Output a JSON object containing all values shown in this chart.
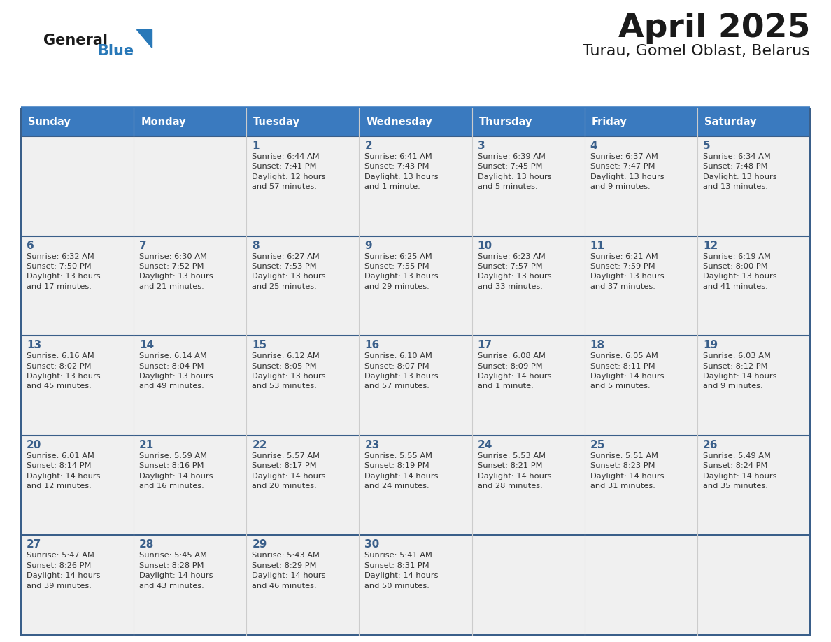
{
  "title": "April 2025",
  "subtitle": "Turau, Gomel Oblast, Belarus",
  "days_of_week": [
    "Sunday",
    "Monday",
    "Tuesday",
    "Wednesday",
    "Thursday",
    "Friday",
    "Saturday"
  ],
  "header_bg": "#3a7abf",
  "header_text_color": "#ffffff",
  "cell_bg": "#f0f0f0",
  "cell_bg_empty": "#f8f8f8",
  "border_color": "#3a5f8a",
  "day_number_color": "#3a5f8a",
  "cell_text_color": "#333333",
  "logo_text_color": "#1a1a1a",
  "logo_blue_color": "#2878b8",
  "title_color": "#1a1a1a",
  "weeks": [
    [
      {
        "day": null,
        "text": ""
      },
      {
        "day": null,
        "text": ""
      },
      {
        "day": 1,
        "text": "Sunrise: 6:44 AM\nSunset: 7:41 PM\nDaylight: 12 hours\nand 57 minutes."
      },
      {
        "day": 2,
        "text": "Sunrise: 6:41 AM\nSunset: 7:43 PM\nDaylight: 13 hours\nand 1 minute."
      },
      {
        "day": 3,
        "text": "Sunrise: 6:39 AM\nSunset: 7:45 PM\nDaylight: 13 hours\nand 5 minutes."
      },
      {
        "day": 4,
        "text": "Sunrise: 6:37 AM\nSunset: 7:47 PM\nDaylight: 13 hours\nand 9 minutes."
      },
      {
        "day": 5,
        "text": "Sunrise: 6:34 AM\nSunset: 7:48 PM\nDaylight: 13 hours\nand 13 minutes."
      }
    ],
    [
      {
        "day": 6,
        "text": "Sunrise: 6:32 AM\nSunset: 7:50 PM\nDaylight: 13 hours\nand 17 minutes."
      },
      {
        "day": 7,
        "text": "Sunrise: 6:30 AM\nSunset: 7:52 PM\nDaylight: 13 hours\nand 21 minutes."
      },
      {
        "day": 8,
        "text": "Sunrise: 6:27 AM\nSunset: 7:53 PM\nDaylight: 13 hours\nand 25 minutes."
      },
      {
        "day": 9,
        "text": "Sunrise: 6:25 AM\nSunset: 7:55 PM\nDaylight: 13 hours\nand 29 minutes."
      },
      {
        "day": 10,
        "text": "Sunrise: 6:23 AM\nSunset: 7:57 PM\nDaylight: 13 hours\nand 33 minutes."
      },
      {
        "day": 11,
        "text": "Sunrise: 6:21 AM\nSunset: 7:59 PM\nDaylight: 13 hours\nand 37 minutes."
      },
      {
        "day": 12,
        "text": "Sunrise: 6:19 AM\nSunset: 8:00 PM\nDaylight: 13 hours\nand 41 minutes."
      }
    ],
    [
      {
        "day": 13,
        "text": "Sunrise: 6:16 AM\nSunset: 8:02 PM\nDaylight: 13 hours\nand 45 minutes."
      },
      {
        "day": 14,
        "text": "Sunrise: 6:14 AM\nSunset: 8:04 PM\nDaylight: 13 hours\nand 49 minutes."
      },
      {
        "day": 15,
        "text": "Sunrise: 6:12 AM\nSunset: 8:05 PM\nDaylight: 13 hours\nand 53 minutes."
      },
      {
        "day": 16,
        "text": "Sunrise: 6:10 AM\nSunset: 8:07 PM\nDaylight: 13 hours\nand 57 minutes."
      },
      {
        "day": 17,
        "text": "Sunrise: 6:08 AM\nSunset: 8:09 PM\nDaylight: 14 hours\nand 1 minute."
      },
      {
        "day": 18,
        "text": "Sunrise: 6:05 AM\nSunset: 8:11 PM\nDaylight: 14 hours\nand 5 minutes."
      },
      {
        "day": 19,
        "text": "Sunrise: 6:03 AM\nSunset: 8:12 PM\nDaylight: 14 hours\nand 9 minutes."
      }
    ],
    [
      {
        "day": 20,
        "text": "Sunrise: 6:01 AM\nSunset: 8:14 PM\nDaylight: 14 hours\nand 12 minutes."
      },
      {
        "day": 21,
        "text": "Sunrise: 5:59 AM\nSunset: 8:16 PM\nDaylight: 14 hours\nand 16 minutes."
      },
      {
        "day": 22,
        "text": "Sunrise: 5:57 AM\nSunset: 8:17 PM\nDaylight: 14 hours\nand 20 minutes."
      },
      {
        "day": 23,
        "text": "Sunrise: 5:55 AM\nSunset: 8:19 PM\nDaylight: 14 hours\nand 24 minutes."
      },
      {
        "day": 24,
        "text": "Sunrise: 5:53 AM\nSunset: 8:21 PM\nDaylight: 14 hours\nand 28 minutes."
      },
      {
        "day": 25,
        "text": "Sunrise: 5:51 AM\nSunset: 8:23 PM\nDaylight: 14 hours\nand 31 minutes."
      },
      {
        "day": 26,
        "text": "Sunrise: 5:49 AM\nSunset: 8:24 PM\nDaylight: 14 hours\nand 35 minutes."
      }
    ],
    [
      {
        "day": 27,
        "text": "Sunrise: 5:47 AM\nSunset: 8:26 PM\nDaylight: 14 hours\nand 39 minutes."
      },
      {
        "day": 28,
        "text": "Sunrise: 5:45 AM\nSunset: 8:28 PM\nDaylight: 14 hours\nand 43 minutes."
      },
      {
        "day": 29,
        "text": "Sunrise: 5:43 AM\nSunset: 8:29 PM\nDaylight: 14 hours\nand 46 minutes."
      },
      {
        "day": 30,
        "text": "Sunrise: 5:41 AM\nSunset: 8:31 PM\nDaylight: 14 hours\nand 50 minutes."
      },
      {
        "day": null,
        "text": ""
      },
      {
        "day": null,
        "text": ""
      },
      {
        "day": null,
        "text": ""
      }
    ]
  ]
}
